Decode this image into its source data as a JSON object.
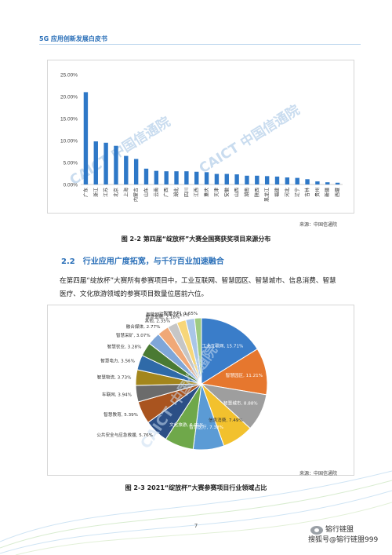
{
  "header": {
    "title": "5G 应用创新发展白皮书"
  },
  "figure1": {
    "watermark_text": "CAICT 中国信通院",
    "source": "来源：中国信通院",
    "caption": "图 2-2  第四届“绽放杯”大赛全国赛获奖项目来源分布"
  },
  "section": {
    "number": "2.2",
    "title": "行业应用广度拓宽，与千行百业加速融合"
  },
  "paragraph": "在第四届“绽放杯”大赛所有参赛项目中，工业互联网、智慧园区、智慧城市、信息消费、智慧医疗、文化旅游领域的参赛项目数量位居前六位。",
  "figure2": {
    "watermark_text": "CAICT 中国信通院",
    "source": "来源：中国信通院",
    "caption": "图 2-3 2021“绽放杯”大赛参赛项目行业领域占比"
  },
  "footer": {
    "page_number": "7"
  },
  "watermark": {
    "line1": "镕行链盟",
    "line2": "搜狐号@镕行链盟999"
  },
  "chart_data": [
    {
      "type": "bar",
      "categories": [
        "广东",
        "浙江",
        "江苏",
        "北京",
        "上海",
        "内蒙古",
        "山东",
        "云南",
        "广西",
        "湖北",
        "四川",
        "江西",
        "重庆",
        "天津",
        "安徽",
        "山西",
        "湖南",
        "陕西",
        "黑龙江",
        "福建",
        "河北",
        "辽宁",
        "吉林",
        "贵州",
        "新疆",
        "西藏"
      ],
      "values": [
        21.0,
        9.8,
        9.5,
        8.8,
        6.5,
        5.8,
        3.6,
        3.1,
        3.0,
        3.0,
        3.0,
        2.9,
        2.8,
        2.4,
        2.4,
        2.3,
        2.0,
        2.0,
        1.9,
        1.8,
        1.6,
        1.5,
        1.2,
        0.7,
        0.5,
        0.4
      ],
      "ylim": [
        0,
        25
      ],
      "yticks": [
        "0.00%",
        "5.00%",
        "10.00%",
        "15.00%",
        "20.00%",
        "25.00%"
      ],
      "grid": false,
      "color": "#2e78c7"
    },
    {
      "type": "pie",
      "labels": [
        "工业互联网",
        "智慧园区",
        "智慧城市",
        "信息消费",
        "智慧医疗",
        "文化旅游",
        "公共安全与应急救援",
        "智慧教育",
        "车联网",
        "智慧物流",
        "智慧电力",
        "智慧农业",
        "智慧采矿",
        "融合媒体",
        "其他",
        "智慧金融",
        "智能网联汽车",
        "智慧水利"
      ],
      "display_labels": [
        "工业互联网, 15.71%",
        "智慧园区, 11.21%",
        "智慧城市, 8.88%",
        "信息消费, 7.49%",
        "智慧医疗, 7.38%",
        "文化旅游, 6.91%",
        "公共安全与应急救援, 5.76%",
        "智慧教育, 5.39%",
        "车联网, 3.94%",
        "智慧物流, 3.73%",
        "智慧电力, 3.56%",
        "智慧农业, 3.28%",
        "智慧采矿, 3.07%",
        "融合媒体, 2.77%",
        "其他, 2.35%",
        "智慧金融, 2.18%",
        "智能网联汽车, 2.11%",
        "智慧水利, 1.65%"
      ],
      "values": [
        15.71,
        11.21,
        8.88,
        7.49,
        7.38,
        6.91,
        5.76,
        5.39,
        3.94,
        3.73,
        3.56,
        3.28,
        3.07,
        2.77,
        2.35,
        2.18,
        2.11,
        1.65
      ],
      "colors": [
        "#3a7dc9",
        "#e6772e",
        "#9e9e9e",
        "#f2c12e",
        "#5b9bd5",
        "#6fa84a",
        "#2c4f86",
        "#a9541f",
        "#6b6b6b",
        "#a3861c",
        "#2f6aa8",
        "#4a7a33",
        "#7fa6d8",
        "#f0a877",
        "#c6c6c6",
        "#f7d67a",
        "#a9c6e8",
        "#9fcb82"
      ],
      "label_text_color": [
        "#ffffff",
        "#ffffff",
        "#ffffff",
        "#333333",
        "#ffffff",
        "#ffffff",
        "#333333",
        "#333333",
        "#333333",
        "#333333",
        "#333333",
        "#333333",
        "#333333",
        "#333333",
        "#333333",
        "#333333",
        "#333333",
        "#333333"
      ],
      "legend": false
    }
  ]
}
